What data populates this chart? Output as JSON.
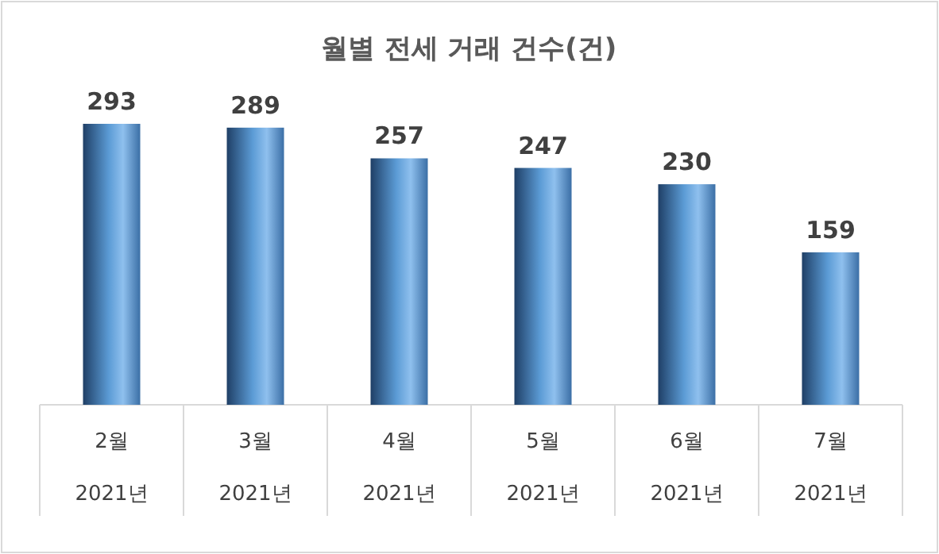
{
  "chart_data": {
    "type": "bar",
    "title": "월별 전세 거래 건수(건)",
    "categories": [
      "2월",
      "3월",
      "4월",
      "5월",
      "6월",
      "7월"
    ],
    "values": [
      293,
      289,
      257,
      247,
      230,
      159
    ],
    "color": "#5b9bd5",
    "data_labels": true,
    "annotations": [
      "2021년",
      "2021년",
      "2021년",
      "2021년",
      "2021년",
      "2021년"
    ]
  }
}
